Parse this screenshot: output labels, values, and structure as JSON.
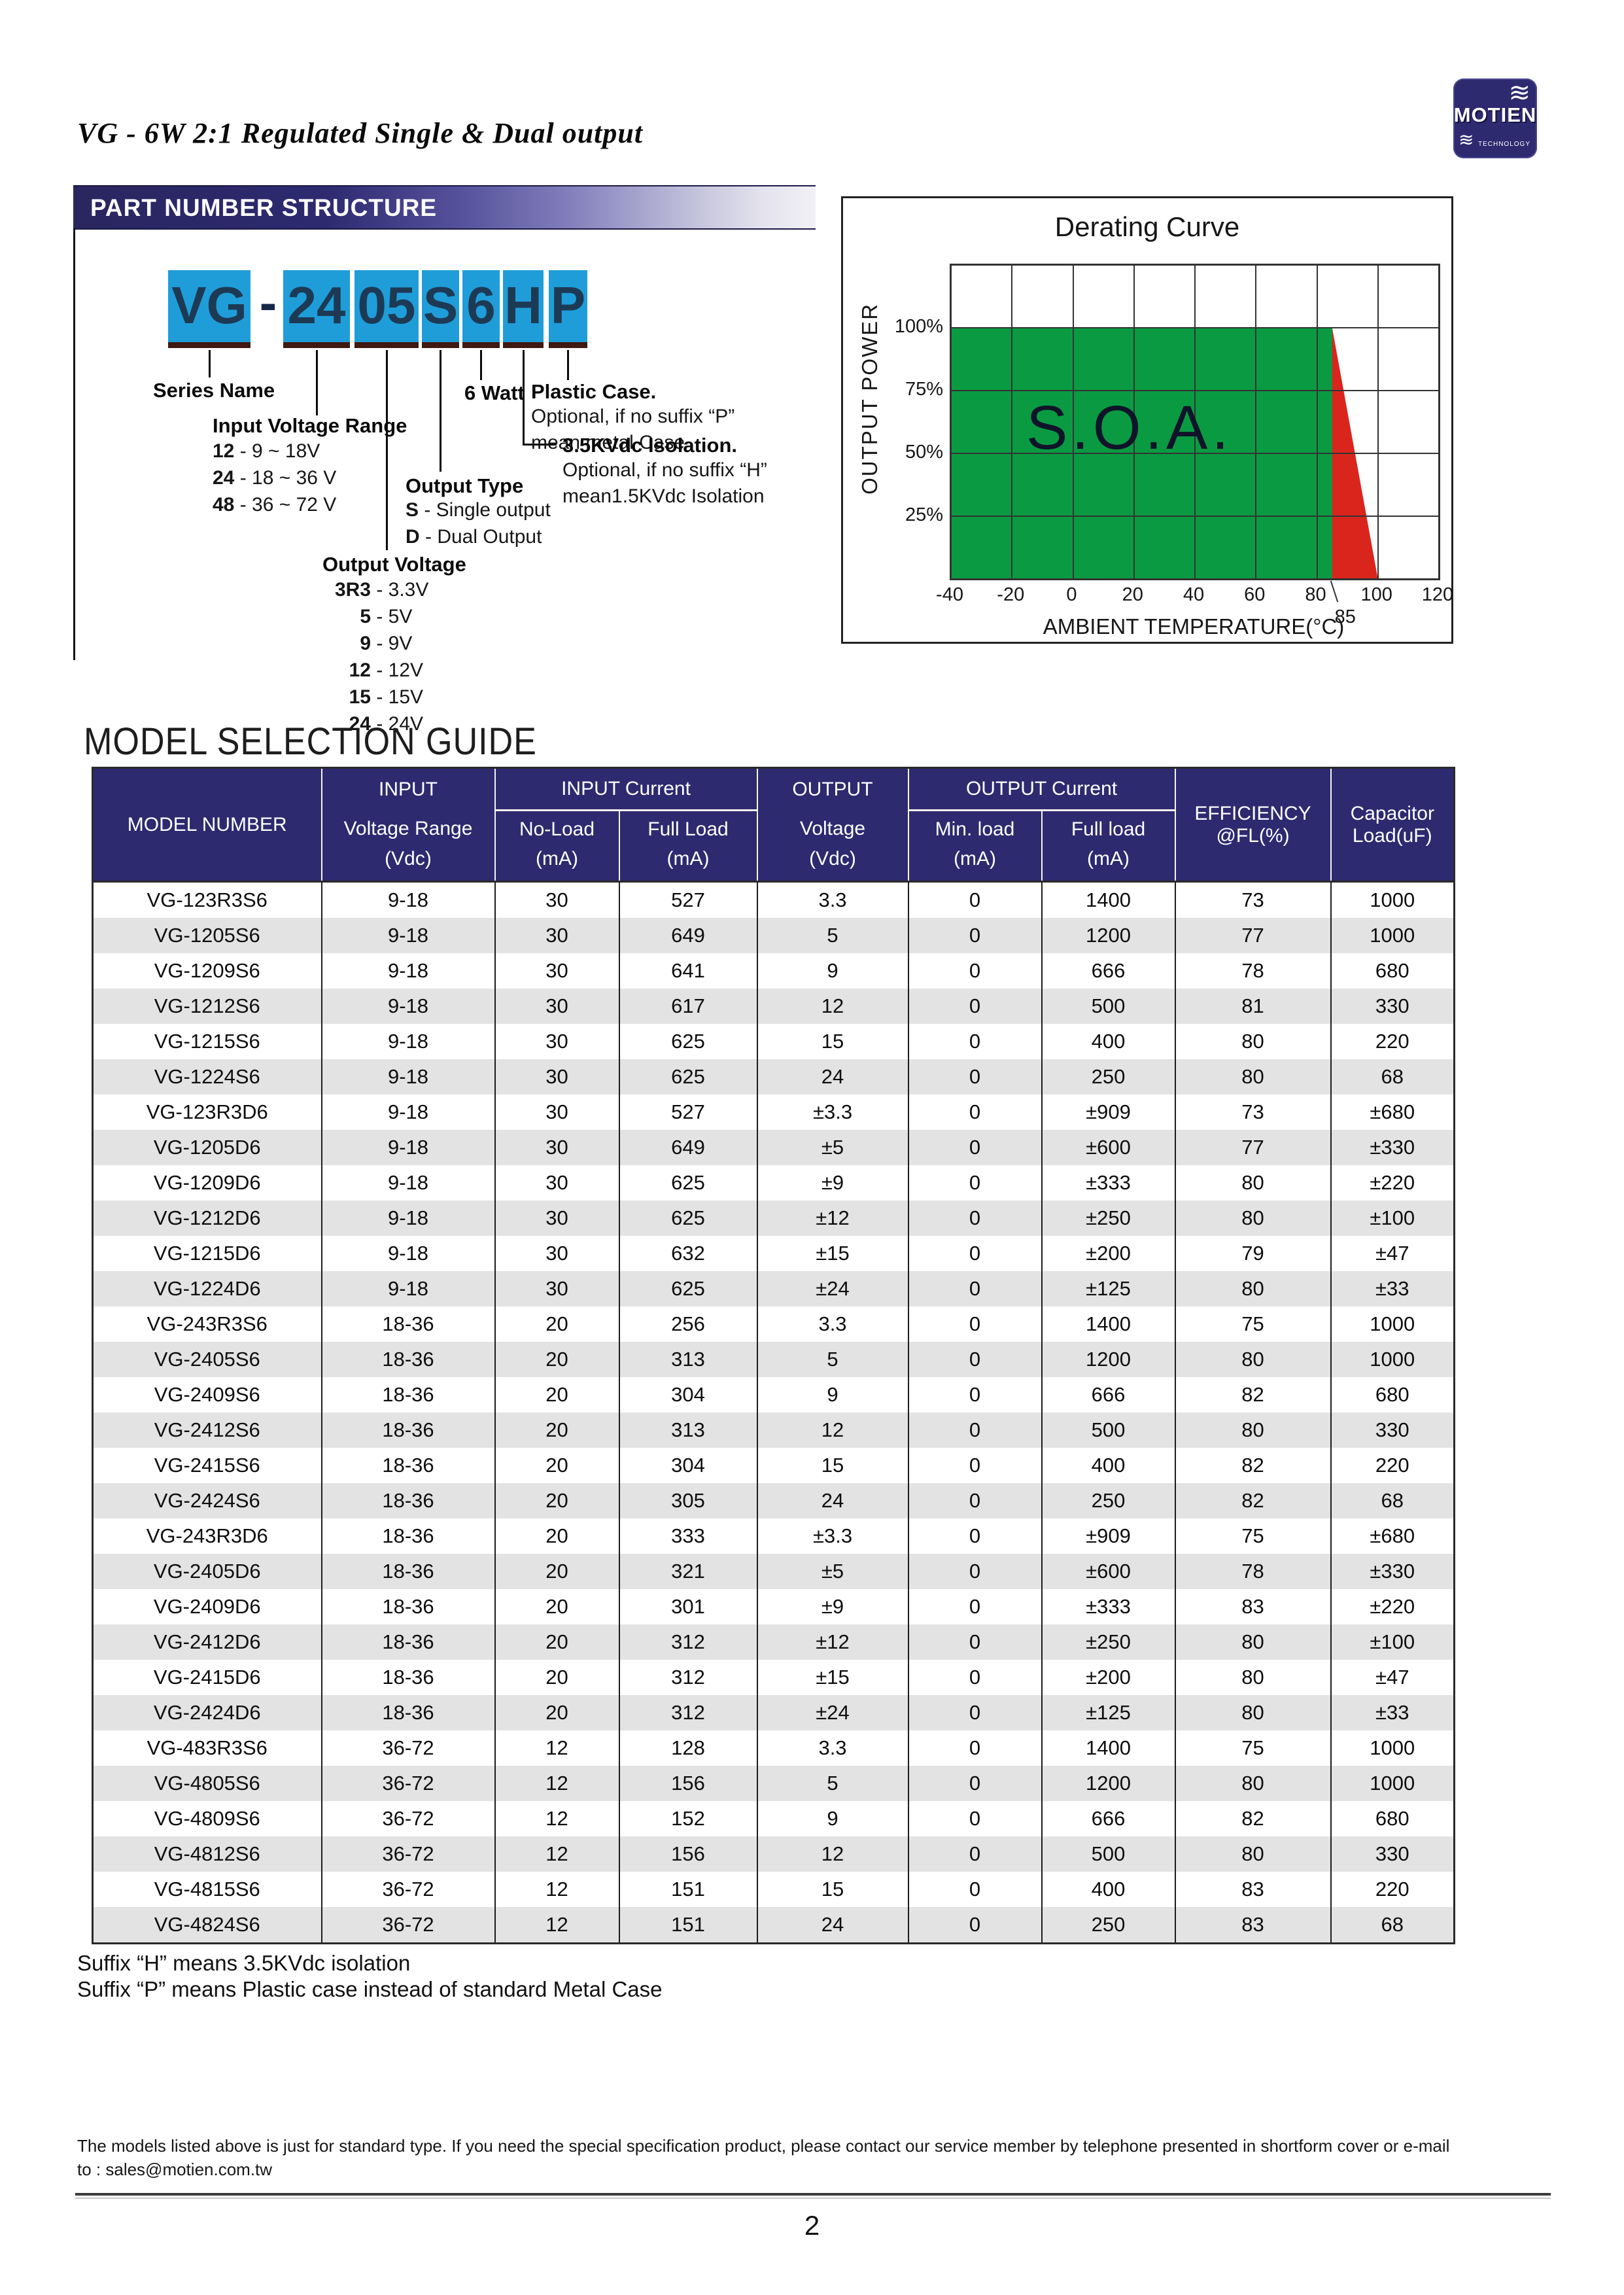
{
  "page": {
    "title": "VG - 6W 2:1 Regulated Single & Dual output",
    "number": "2"
  },
  "logo": {
    "brand": "MOTIEN",
    "sub": "TECHNOLOGY",
    "wave": "≋",
    "color": "#2d2a70"
  },
  "part_number": {
    "section_title": "PART NUMBER STRUCTURE",
    "boxes": [
      "VG",
      "-",
      "24",
      "05",
      "S",
      "6",
      "H",
      "P"
    ],
    "series_name": "Series Name",
    "input_voltage": {
      "title": "Input Voltage Range",
      "items": [
        {
          "key": "12",
          "value": "9 ~ 18V"
        },
        {
          "key": "24",
          "value": "18 ~ 36 V"
        },
        {
          "key": "48",
          "value": "36 ~ 72 V"
        }
      ]
    },
    "output_voltage": {
      "title": "Output Voltage",
      "items": [
        {
          "key": "3R3",
          "value": "3.3V"
        },
        {
          "key": "5",
          "value": "5V"
        },
        {
          "key": "9",
          "value": "9V"
        },
        {
          "key": "12",
          "value": "12V"
        },
        {
          "key": "15",
          "value": "15V"
        },
        {
          "key": "24",
          "value": "24V"
        }
      ]
    },
    "output_type": {
      "title": "Output Type",
      "items": [
        {
          "key": "S",
          "value": "Single output"
        },
        {
          "key": "D",
          "value": "Dual Output"
        }
      ]
    },
    "watt_label": "6 Watt",
    "plastic_case": {
      "title": "Plastic Case.",
      "lines": [
        "Optional, if no suffix “P”",
        "mean metal Case"
      ]
    },
    "isolation": {
      "title": "3.5KVdc Isolation.",
      "lines": [
        "Optional,  if no suffix “H”",
        "mean1.5KVdc Isolation"
      ]
    },
    "box_color": "#1f9dd9"
  },
  "chart_data": {
    "type": "area",
    "title": "Derating Curve",
    "xlabel": "AMBIENT TEMPERATURE(°C)",
    "ylabel": "OUTPUT POWER",
    "xlim": [
      -40,
      120
    ],
    "ylim_pct": [
      0,
      125
    ],
    "x_ticks": [
      -40,
      -20,
      0,
      20,
      40,
      60,
      80,
      100,
      120
    ],
    "extra_x_tick": 85,
    "y_ticks": [
      {
        "pct": 100,
        "label": "100%"
      },
      {
        "pct": 75,
        "label": "75%"
      },
      {
        "pct": 50,
        "label": "50%"
      },
      {
        "pct": 25,
        "label": "25%"
      }
    ],
    "grid": true,
    "soa_label": "S.O.A.",
    "safe_operating_area": {
      "x_range": [
        -40,
        85
      ],
      "power_pct": 100,
      "color": "#0a9b42"
    },
    "derate_line": [
      {
        "x": 85,
        "power_pct": 100
      },
      {
        "x": 100,
        "power_pct": 0
      }
    ],
    "overload_color": "#da251d"
  },
  "guide": {
    "heading": "MODEL SELECTION GUIDE",
    "header": {
      "model_number": "MODEL NUMBER",
      "input": "INPUT",
      "input_voltage_range": "Voltage Range",
      "input_current": "INPUT Current",
      "no_load": "No-Load",
      "full_load": "Full Load",
      "output": "OUTPUT",
      "output_voltage": "Voltage",
      "output_current": "OUTPUT Current",
      "min_load": "Min. load",
      "full_load2": "Full load",
      "efficiency1": "EFFICIENCY",
      "efficiency2": "@FL(%)",
      "capacitor1": "Capacitor",
      "capacitor2": "Load(uF)",
      "unit_vdc": "(Vdc)",
      "unit_ma": "(mA)"
    },
    "rows": [
      [
        "VG-123R3S6",
        "9-18",
        "30",
        "527",
        "3.3",
        "0",
        "1400",
        "73",
        "1000"
      ],
      [
        "VG-1205S6",
        "9-18",
        "30",
        "649",
        "5",
        "0",
        "1200",
        "77",
        "1000"
      ],
      [
        "VG-1209S6",
        "9-18",
        "30",
        "641",
        "9",
        "0",
        "666",
        "78",
        "680"
      ],
      [
        "VG-1212S6",
        "9-18",
        "30",
        "617",
        "12",
        "0",
        "500",
        "81",
        "330"
      ],
      [
        "VG-1215S6",
        "9-18",
        "30",
        "625",
        "15",
        "0",
        "400",
        "80",
        "220"
      ],
      [
        "VG-1224S6",
        "9-18",
        "30",
        "625",
        "24",
        "0",
        "250",
        "80",
        "68"
      ],
      [
        "VG-123R3D6",
        "9-18",
        "30",
        "527",
        "±3.3",
        "0",
        "±909",
        "73",
        "±680"
      ],
      [
        "VG-1205D6",
        "9-18",
        "30",
        "649",
        "±5",
        "0",
        "±600",
        "77",
        "±330"
      ],
      [
        "VG-1209D6",
        "9-18",
        "30",
        "625",
        "±9",
        "0",
        "±333",
        "80",
        "±220"
      ],
      [
        "VG-1212D6",
        "9-18",
        "30",
        "625",
        "±12",
        "0",
        "±250",
        "80",
        "±100"
      ],
      [
        "VG-1215D6",
        "9-18",
        "30",
        "632",
        "±15",
        "0",
        "±200",
        "79",
        "±47"
      ],
      [
        "VG-1224D6",
        "9-18",
        "30",
        "625",
        "±24",
        "0",
        "±125",
        "80",
        "±33"
      ],
      [
        "VG-243R3S6",
        "18-36",
        "20",
        "256",
        "3.3",
        "0",
        "1400",
        "75",
        "1000"
      ],
      [
        "VG-2405S6",
        "18-36",
        "20",
        "313",
        "5",
        "0",
        "1200",
        "80",
        "1000"
      ],
      [
        "VG-2409S6",
        "18-36",
        "20",
        "304",
        "9",
        "0",
        "666",
        "82",
        "680"
      ],
      [
        "VG-2412S6",
        "18-36",
        "20",
        "313",
        "12",
        "0",
        "500",
        "80",
        "330"
      ],
      [
        "VG-2415S6",
        "18-36",
        "20",
        "304",
        "15",
        "0",
        "400",
        "82",
        "220"
      ],
      [
        "VG-2424S6",
        "18-36",
        "20",
        "305",
        "24",
        "0",
        "250",
        "82",
        "68"
      ],
      [
        "VG-243R3D6",
        "18-36",
        "20",
        "333",
        "±3.3",
        "0",
        "±909",
        "75",
        "±680"
      ],
      [
        "VG-2405D6",
        "18-36",
        "20",
        "321",
        "±5",
        "0",
        "±600",
        "78",
        "±330"
      ],
      [
        "VG-2409D6",
        "18-36",
        "20",
        "301",
        "±9",
        "0",
        "±333",
        "83",
        "±220"
      ],
      [
        "VG-2412D6",
        "18-36",
        "20",
        "312",
        "±12",
        "0",
        "±250",
        "80",
        "±100"
      ],
      [
        "VG-2415D6",
        "18-36",
        "20",
        "312",
        "±15",
        "0",
        "±200",
        "80",
        "±47"
      ],
      [
        "VG-2424D6",
        "18-36",
        "20",
        "312",
        "±24",
        "0",
        "±125",
        "80",
        "±33"
      ],
      [
        "VG-483R3S6",
        "36-72",
        "12",
        "128",
        "3.3",
        "0",
        "1400",
        "75",
        "1000"
      ],
      [
        "VG-4805S6",
        "36-72",
        "12",
        "156",
        "5",
        "0",
        "1200",
        "80",
        "1000"
      ],
      [
        "VG-4809S6",
        "36-72",
        "12",
        "152",
        "9",
        "0",
        "666",
        "82",
        "680"
      ],
      [
        "VG-4812S6",
        "36-72",
        "12",
        "156",
        "12",
        "0",
        "500",
        "80",
        "330"
      ],
      [
        "VG-4815S6",
        "36-72",
        "12",
        "151",
        "15",
        "0",
        "400",
        "83",
        "220"
      ],
      [
        "VG-4824S6",
        "36-72",
        "12",
        "151",
        "24",
        "0",
        "250",
        "83",
        "68"
      ]
    ],
    "footnotes": [
      "Suffix “H” means 3.5KVdc isolation",
      "Suffix “P” means Plastic case instead of standard Metal Case"
    ]
  },
  "footer": {
    "note_line1": "The models listed above is just for standard type. If you need the special specification product, please contact our service member by telephone presented in shortform cover or e-mail",
    "note_line2": "to : sales@motien.com.tw"
  }
}
